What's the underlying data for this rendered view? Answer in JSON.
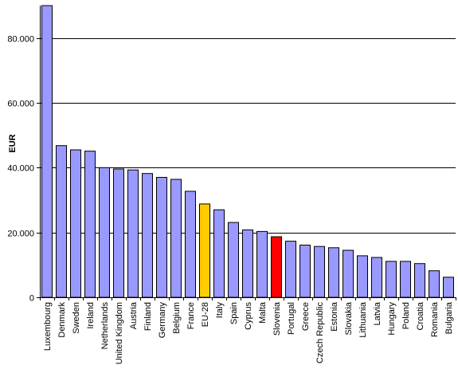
{
  "chart_data": {
    "type": "bar",
    "title": "",
    "xlabel": "",
    "ylabel": "EUR",
    "ylim": [
      0,
      90000
    ],
    "yticks": [
      0,
      20000,
      40000,
      60000,
      80000
    ],
    "ytick_labels": [
      "0",
      "20.000",
      "40.000",
      "60.000",
      "80.000"
    ],
    "grid": true,
    "legend": "none",
    "categories": [
      "Luxembourg",
      "Denmark",
      "Sweden",
      "Ireland",
      "Netherlands",
      "United Kingdom",
      "Austria",
      "Finland",
      "Germany",
      "Belgium",
      "France",
      "EU-28",
      "Italy",
      "Spain",
      "Cyprus",
      "Malta",
      "Slovenia",
      "Portugal",
      "Greece",
      "Czech Republic",
      "Estonia",
      "Slovakia",
      "Lithuania",
      "Latvia",
      "Hungary",
      "Poland",
      "Croatia",
      "Romania",
      "Bulgaria"
    ],
    "values": [
      90000,
      46800,
      45500,
      45100,
      40000,
      39600,
      39300,
      38200,
      37000,
      36400,
      32700,
      28800,
      27000,
      23100,
      20800,
      20300,
      18700,
      17300,
      16100,
      15700,
      15300,
      14500,
      12800,
      12300,
      11100,
      11100,
      10400,
      8200,
      6200
    ],
    "colors": {
      "default": "#9999ff",
      "EU-28": "#ffcc00",
      "Slovenia": "#ff0000"
    }
  }
}
